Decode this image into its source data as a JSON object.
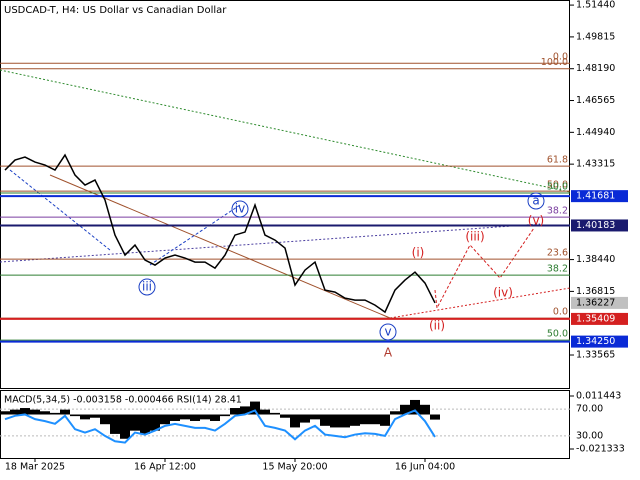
{
  "chart_data": {
    "type": "line",
    "title": "USDCAD-T, H4:  US Dollar vs Canadian Dollar",
    "color": "#000000",
    "categories": [
      null,
      null,
      null,
      "18 Mar 2025",
      null,
      null,
      null,
      null,
      null,
      null,
      null,
      null,
      null,
      null,
      null,
      null,
      "16 Apr 12:00",
      null,
      null,
      null,
      null,
      null,
      null,
      null,
      null,
      null,
      null,
      null,
      null,
      "15 May 20:00",
      null,
      null,
      null,
      null,
      null,
      null,
      null,
      null,
      null,
      null,
      null,
      null,
      "16 Jun 04:00",
      null
    ],
    "values": [
      1.43013,
      1.43524,
      1.43677,
      1.43422,
      1.43269,
      1.43013,
      1.4378,
      1.42758,
      1.42247,
      1.42502,
      1.4148,
      1.39692,
      1.3867,
      1.39181,
      1.38414,
      1.38159,
      1.38516,
      1.3867,
      1.38516,
      1.38312,
      1.38312,
      1.38005,
      1.3867,
      1.39692,
      1.39845,
      1.41225,
      1.39692,
      1.39436,
      1.39027,
      1.37137,
      1.37903,
      1.38312,
      1.36881,
      1.36779,
      1.36472,
      1.3637,
      1.3637,
      1.36115,
      1.35757,
      1.36881,
      1.37392,
      1.37801,
      1.37239,
      1.36227
    ],
    "ylim": [
      1.3188,
      1.517
    ],
    "yticks": [
      {
        "value": 1.5144,
        "label": "1.51440"
      },
      {
        "value": 1.49815,
        "label": "1.49815"
      },
      {
        "value": 1.4819,
        "label": "1.48190"
      },
      {
        "value": 1.46565,
        "label": "1.46565"
      },
      {
        "value": 1.4494,
        "label": "1.44940"
      },
      {
        "value": 1.43315,
        "label": "1.43315"
      },
      {
        "value": 1.3844,
        "label": "1.38440"
      },
      {
        "value": 1.36815,
        "label": "1.36815"
      },
      {
        "value": 1.33565,
        "label": "1.33565"
      }
    ],
    "levels": [
      {
        "value": 1.41681,
        "label": "1.41681",
        "color": "#0a2ad6"
      },
      {
        "value": 1.40183,
        "label": "1.40183",
        "color": "#1a1a6e"
      },
      {
        "value": 1.36227,
        "label": "1.36227",
        "color": "#c0c0c0"
      },
      {
        "value": 1.35409,
        "label": "1.35409",
        "color": "#d42020"
      },
      {
        "value": 1.3425,
        "label": "1.34250",
        "color": "#0a2ad6"
      }
    ],
    "fib_levels": [
      {
        "value": 1.4847,
        "label": "0.0",
        "color": "#a0522d"
      },
      {
        "value": 1.4819,
        "label": "100.0",
        "color": "#a0522d"
      },
      {
        "value": 1.43217,
        "label": "61.8",
        "color": "#a0522d"
      },
      {
        "value": 1.4194,
        "label": "50.0",
        "color": "#a0522d"
      },
      {
        "value": 1.4184,
        "label": "50.0",
        "color": "#2e7d32"
      },
      {
        "value": 1.40611,
        "label": "38.2",
        "color": "#7b3fa0"
      },
      {
        "value": 1.38465,
        "label": "23.6",
        "color": "#a0522d"
      },
      {
        "value": 1.37647,
        "label": "38.2",
        "color": "#2e7d32"
      },
      {
        "value": 1.3545,
        "label": "0.0",
        "color": "#a0522d"
      },
      {
        "value": 1.34326,
        "label": "50.0",
        "color": "#2e7d32"
      }
    ],
    "annotations": [
      {
        "text": "iii",
        "color": "#1a3fc4"
      },
      {
        "text": "iv",
        "color": "#1a3fc4"
      },
      {
        "text": "v",
        "color": "#1a3fc4"
      },
      {
        "text": "A",
        "color": "#b03a2e"
      },
      {
        "text": "(i)",
        "color": "#d42020"
      },
      {
        "text": "(ii)",
        "color": "#d42020"
      },
      {
        "text": "(iii)",
        "color": "#d42020"
      },
      {
        "text": "(iv)",
        "color": "#d42020"
      },
      {
        "text": "(v)",
        "color": "#d42020"
      },
      {
        "text": "a",
        "color": "#1a3fc4"
      }
    ],
    "indicator": {
      "title": "MACD(5,34,5) -0.003158 -0.000466 RSI(14) 28.41",
      "macd_lim": [
        -0.021333,
        0.011443
      ],
      "macd_ticks": [
        {
          "value": 0.011443,
          "label": "0.011443"
        },
        {
          "value": -0.021333,
          "label": "-0.021333"
        }
      ],
      "rsi_lim": [
        0,
        100
      ],
      "rsi_ticks": [
        {
          "value": 70,
          "label": "70.00"
        },
        {
          "value": 30,
          "label": "30.00"
        }
      ],
      "macd": [
        0.002,
        0.003,
        0.004,
        0.003,
        0.002,
        0.001,
        0.003,
        -0.001,
        -0.003,
        -0.002,
        -0.006,
        -0.012,
        -0.015,
        -0.01,
        -0.012,
        -0.01,
        -0.006,
        -0.004,
        -0.003,
        -0.004,
        -0.003,
        -0.004,
        -0.001,
        0.004,
        0.005,
        0.008,
        0.003,
        0.001,
        -0.002,
        -0.008,
        -0.005,
        -0.003,
        -0.007,
        -0.008,
        -0.008,
        -0.007,
        -0.006,
        -0.006,
        -0.007,
        0.002,
        0.006,
        0.009,
        0.006,
        -0.003158
      ],
      "rsi": [
        55,
        60,
        62,
        55,
        52,
        48,
        60,
        40,
        35,
        40,
        30,
        22,
        20,
        35,
        32,
        38,
        45,
        48,
        45,
        42,
        42,
        38,
        48,
        60,
        62,
        68,
        45,
        42,
        38,
        25,
        38,
        45,
        32,
        30,
        28,
        32,
        34,
        33,
        30,
        55,
        62,
        68,
        52,
        28.41
      ],
      "rsi_color": "#1e90ff",
      "macd_color": "#000000"
    }
  }
}
